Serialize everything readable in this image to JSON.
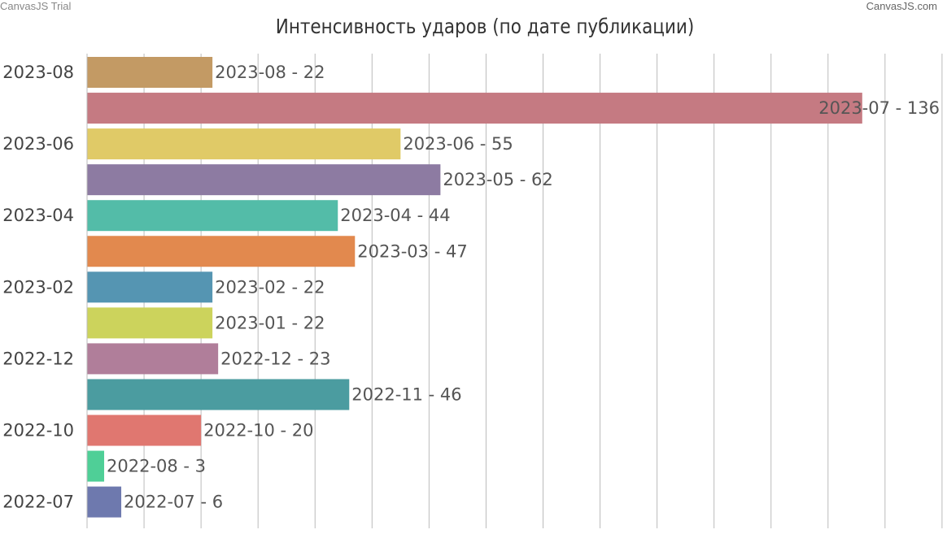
{
  "credits": {
    "left": "CanvasJS Trial",
    "right": "CanvasJS.com"
  },
  "chart_data": {
    "type": "bar",
    "orientation": "horizontal",
    "title": "Интенсивность ударов (по дате публикации)",
    "xlabel": "",
    "ylabel": "",
    "grid": true,
    "xlim": [
      0,
      150
    ],
    "y_tick_labels": [
      "2023-08",
      "2023-06",
      "2023-04",
      "2023-02",
      "2022-12",
      "2022-10",
      "2022-07"
    ],
    "categories": [
      "2023-08",
      "2023-07",
      "2023-06",
      "2023-05",
      "2023-04",
      "2023-03",
      "2023-02",
      "2023-01",
      "2022-12",
      "2022-11",
      "2022-10",
      "2022-08",
      "2022-07"
    ],
    "values": [
      22,
      136,
      55,
      62,
      44,
      47,
      22,
      22,
      23,
      46,
      20,
      3,
      6
    ],
    "data_labels": [
      "2023-08 - 22",
      "2023-07 - 136",
      "2023-06 - 55",
      "2023-05 - 62",
      "2023-04 - 44",
      "2023-03 - 47",
      "2023-02 - 22",
      "2023-01 - 22",
      "2022-12 - 23",
      "2022-11 - 46",
      "2022-10 - 20",
      "2022-08 - 3",
      "2022-07 - 6"
    ],
    "colors": [
      "#C39A64",
      "#C57A82",
      "#E0CA67",
      "#8D7BA2",
      "#53BCA8",
      "#E2894E",
      "#5595B2",
      "#CCD35C",
      "#B07E9A",
      "#4B9CA0",
      "#E07770",
      "#4FCF97",
      "#6E79AE"
    ]
  }
}
